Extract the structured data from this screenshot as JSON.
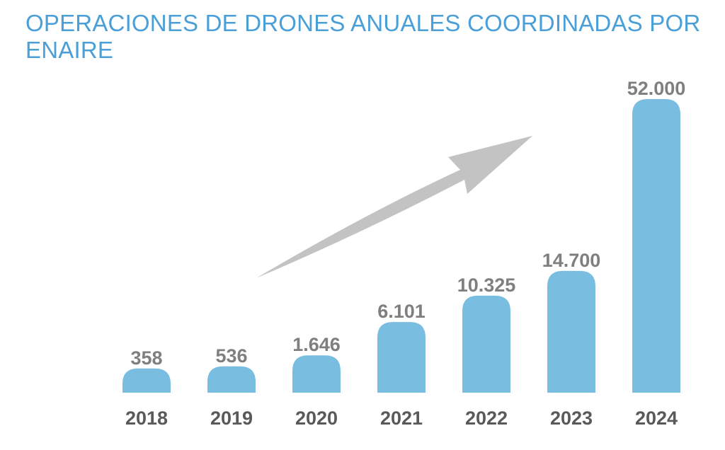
{
  "colors": {
    "title": "#4a9fd8",
    "bar": "#79bde0",
    "value_label": "#7f7f7f",
    "tick_label": "#595959",
    "arrow": "#c3c3c3"
  },
  "chart_data": {
    "type": "bar",
    "title": "OPERACIONES DE DRONES ANUALES COORDINADAS POR ENAIRE",
    "categories": [
      "2018",
      "2019",
      "2020",
      "2021",
      "2022",
      "2023",
      "2024"
    ],
    "values": [
      358,
      536,
      1646,
      6101,
      10325,
      14700,
      52000
    ],
    "data_labels": [
      "358",
      "536",
      "1.646",
      "6.101",
      "10.325",
      "14.700",
      "52.000"
    ],
    "xlabel": "",
    "ylabel": "",
    "grid": false,
    "legend": "none",
    "annotations": [
      "upward-arrow"
    ]
  }
}
